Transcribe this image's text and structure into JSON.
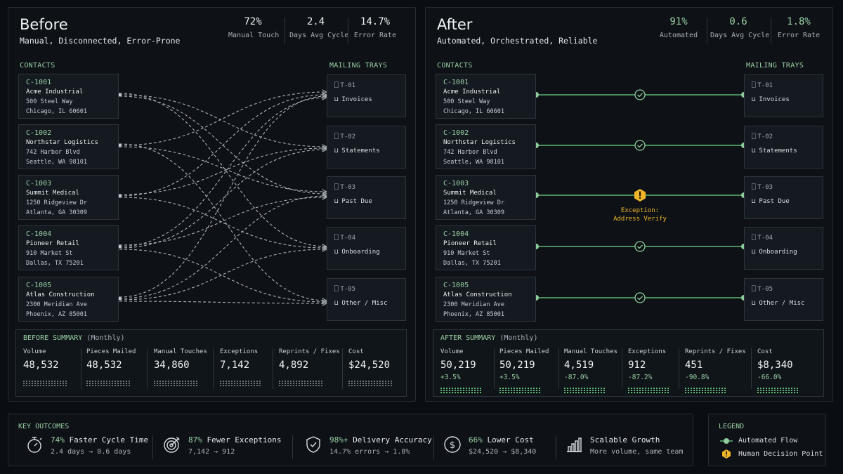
{
  "before": {
    "title": "Before",
    "subtitle": "Manual, Disconnected, Error-Prone",
    "metrics": [
      {
        "value": "72%",
        "label": "Manual Touch"
      },
      {
        "value": "2.4",
        "label": "Days Avg Cycle"
      },
      {
        "value": "14.7%",
        "label": "Error Rate"
      }
    ],
    "contacts_label": "CONTACTS",
    "trays_label": "MAILING TRAYS",
    "summary_title": "BEFORE SUMMARY",
    "summary_period": "(Monthly)",
    "summary": [
      {
        "label": "Volume",
        "value": "48,532"
      },
      {
        "label": "Pieces Mailed",
        "value": "48,532"
      },
      {
        "label": "Manual Touches",
        "value": "34,860"
      },
      {
        "label": "Exceptions",
        "value": "7,142"
      },
      {
        "label": "Reprints / Fixes",
        "value": "4,892"
      },
      {
        "label": "Cost",
        "value": "$24,520"
      }
    ]
  },
  "after": {
    "title": "After",
    "subtitle": "Automated, Orchestrated, Reliable",
    "metrics": [
      {
        "value": "91%",
        "label": "Automated"
      },
      {
        "value": "0.6",
        "label": "Days Avg Cycle"
      },
      {
        "value": "1.8%",
        "label": "Error Rate"
      }
    ],
    "contacts_label": "CONTACTS",
    "trays_label": "MAILING TRAYS",
    "exception_line1": "Exception:",
    "exception_line2": "Address Verify",
    "summary_title": "AFTER SUMMARY",
    "summary_period": "(Monthly)",
    "summary": [
      {
        "label": "Volume",
        "value": "50,219",
        "change": "+3.5%"
      },
      {
        "label": "Pieces Mailed",
        "value": "50,219",
        "change": "+3.5%"
      },
      {
        "label": "Manual Touches",
        "value": "4,519",
        "change": "-87.0%"
      },
      {
        "label": "Exceptions",
        "value": "912",
        "change": "-87.2%"
      },
      {
        "label": "Reprints / Fixes",
        "value": "451",
        "change": "-90.8%"
      },
      {
        "label": "Cost",
        "value": "$8,340",
        "change": "-66.0%"
      }
    ]
  },
  "contacts": [
    {
      "id": "C-1001",
      "name": "Acme Industrial",
      "addr1": "500 Steel Way",
      "addr2": "Chicago, IL 60601"
    },
    {
      "id": "C-1002",
      "name": "Northstar Logistics",
      "addr1": "742 Harbor Blvd",
      "addr2": "Seattle, WA 98101"
    },
    {
      "id": "C-1003",
      "name": "Summit Medical",
      "addr1": "1250 Ridgeview Dr",
      "addr2": "Atlanta, GA 30309"
    },
    {
      "id": "C-1004",
      "name": "Pioneer Retail",
      "addr1": "910 Market St",
      "addr2": "Dallas, TX 75201"
    },
    {
      "id": "C-1005",
      "name": "Atlas Construction",
      "addr1": "2300 Meridian Ave",
      "addr2": "Phoenix, AZ 85001"
    }
  ],
  "trays": [
    {
      "id": "T-01",
      "name": "Invoices"
    },
    {
      "id": "T-02",
      "name": "Statements"
    },
    {
      "id": "T-03",
      "name": "Past Due"
    },
    {
      "id": "T-04",
      "name": "Onboarding"
    },
    {
      "id": "T-05",
      "name": "Other / Misc"
    }
  ],
  "outcomes": {
    "title": "KEY OUTCOMES",
    "items": [
      {
        "icon": "stopwatch-icon",
        "highlight": "74%",
        "text": " Faster Cycle Time",
        "detail": "2.4 days → 0.6 days"
      },
      {
        "icon": "target-icon",
        "highlight": "87%",
        "text": " Fewer Exceptions",
        "detail": "7,142 → 912"
      },
      {
        "icon": "shield-check-icon",
        "highlight": "98%+",
        "text": " Delivery Accuracy",
        "detail": "14.7% errors → 1.8%"
      },
      {
        "icon": "dollar-icon",
        "highlight": "66%",
        "text": " Lower Cost",
        "detail": "$24,520 → $8,340"
      },
      {
        "icon": "bar-growth-icon",
        "highlight": "",
        "text": "Scalable Growth",
        "detail": "More volume, same team"
      }
    ]
  },
  "legend": {
    "title": "LEGEND",
    "items": [
      "Automated Flow",
      "Human Decision Point"
    ]
  },
  "colors": {
    "accent": "#9ad0a4",
    "flow": "#5fb673",
    "warning": "#f0b429",
    "background": "#0a0d11"
  }
}
